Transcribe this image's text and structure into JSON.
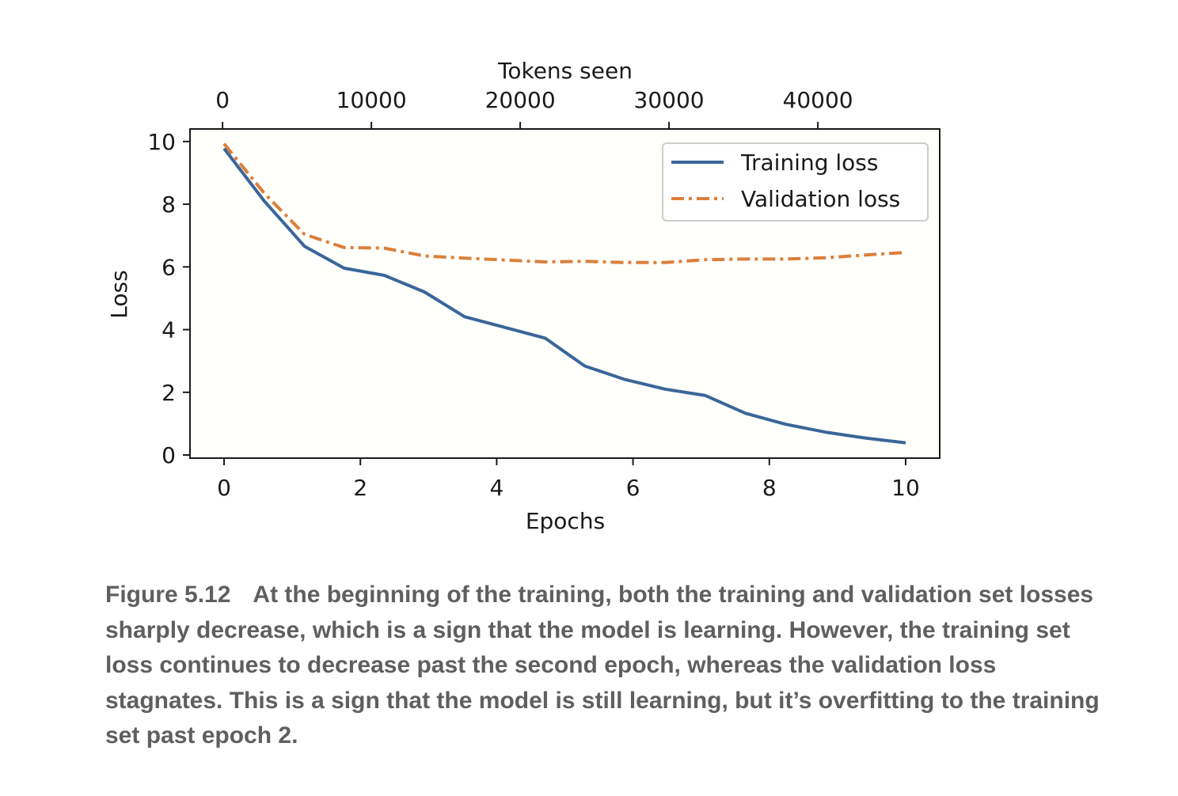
{
  "chart_data": {
    "type": "line",
    "xlabel": "Epochs",
    "x2label": "Tokens seen",
    "ylabel": "Loss",
    "xlim": [
      -0.5,
      10.5
    ],
    "ylim": [
      -0.1,
      10.4
    ],
    "x2lim": [
      -2187,
      48187
    ],
    "xticks": [
      0,
      2,
      4,
      6,
      8,
      10
    ],
    "yticks": [
      0,
      2,
      4,
      6,
      8,
      10
    ],
    "x2ticks": [
      0,
      10000,
      20000,
      30000,
      40000
    ],
    "legend_position": "top-right",
    "grid": false,
    "series": [
      {
        "name": "Training loss",
        "color": "#3a6699",
        "style": "solid",
        "x": [
          0,
          0.59,
          1.18,
          1.76,
          2.35,
          2.94,
          3.53,
          4.12,
          4.71,
          5.29,
          5.88,
          6.47,
          7.06,
          7.65,
          8.24,
          8.82,
          9.41,
          10.0
        ],
        "y": [
          9.78,
          8.1,
          6.66,
          5.96,
          5.73,
          5.2,
          4.41,
          4.07,
          3.73,
          2.84,
          2.41,
          2.1,
          1.9,
          1.33,
          0.98,
          0.73,
          0.54,
          0.39
        ]
      },
      {
        "name": "Validation loss",
        "color": "#db7f3b",
        "style": "dashdot",
        "x": [
          0,
          0.59,
          1.18,
          1.76,
          2.35,
          2.94,
          3.53,
          4.12,
          4.71,
          5.29,
          5.88,
          6.47,
          7.06,
          7.65,
          8.24,
          8.82,
          9.41,
          10.0
        ],
        "y": [
          9.93,
          8.35,
          7.04,
          6.62,
          6.6,
          6.35,
          6.28,
          6.22,
          6.16,
          6.18,
          6.14,
          6.14,
          6.23,
          6.25,
          6.25,
          6.29,
          6.38,
          6.46
        ]
      }
    ]
  },
  "caption": {
    "label": "Figure 5.12",
    "text": "At the beginning of the training, both the training and validation set losses sharply decrease, which is a sign that the model is learning. However, the training set loss continues to decrease past the second epoch, whereas the validation loss stagnates. This is a sign that the model is still learning, but it’s overfitting to the training set past epoch 2."
  }
}
